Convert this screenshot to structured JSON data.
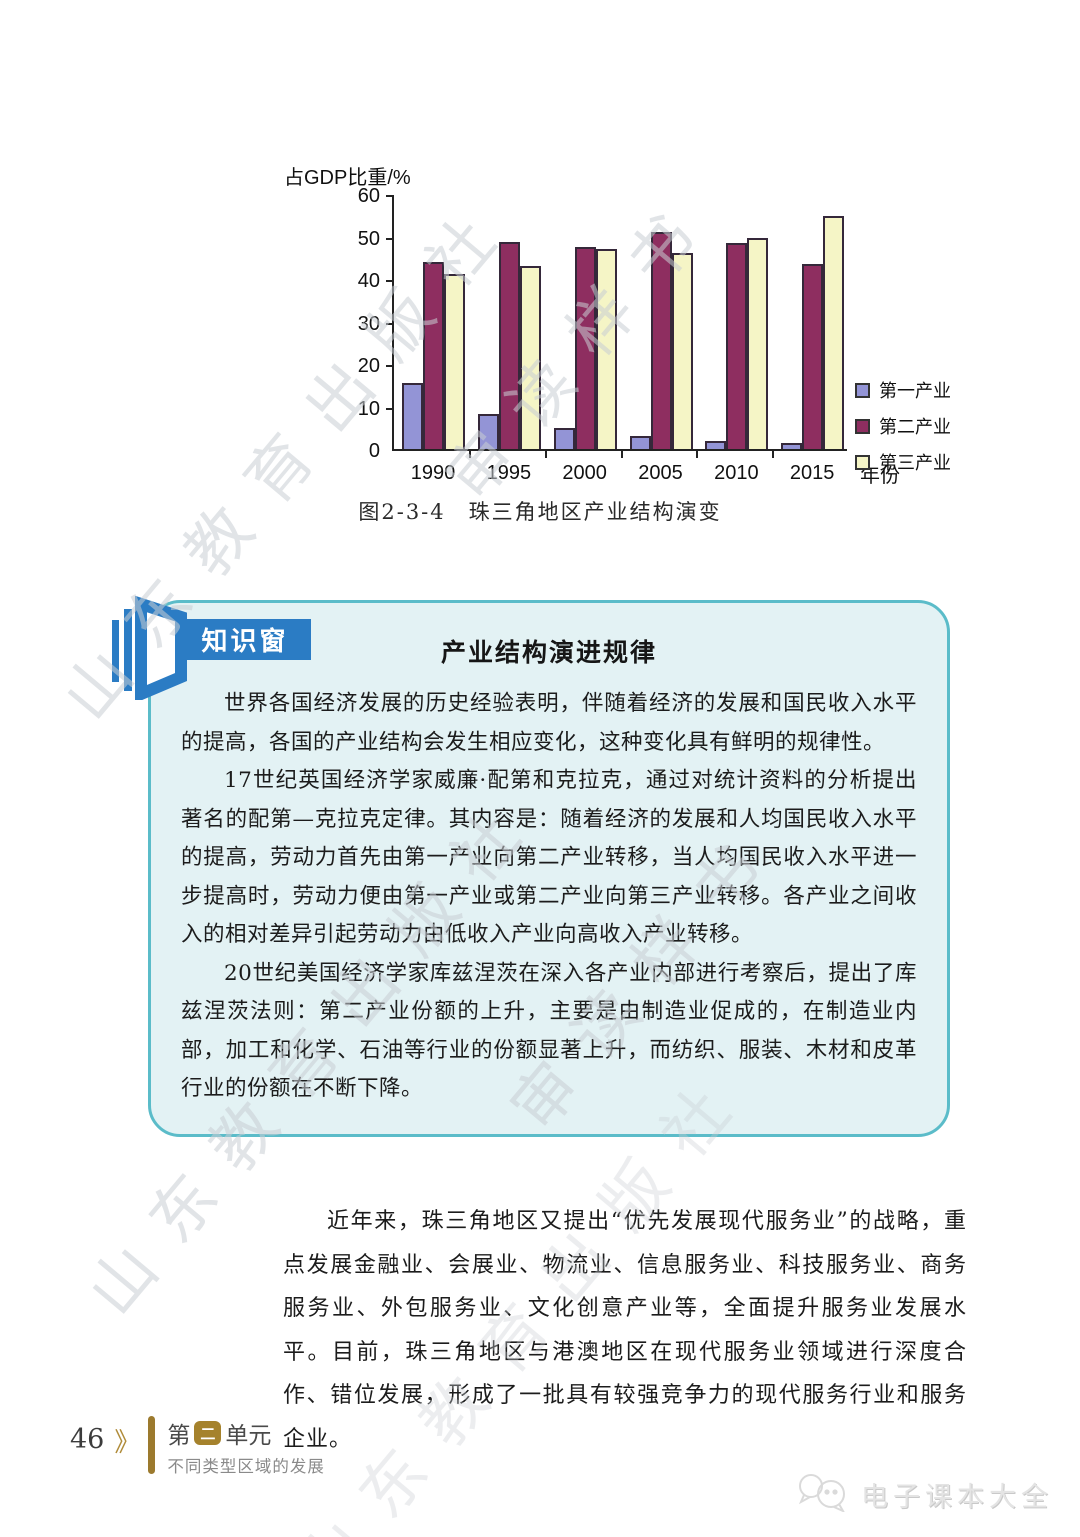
{
  "chart_data": {
    "type": "bar",
    "title": "图2-3-4　珠三角地区产业结构演变",
    "ylabel": "占GDP比重/%",
    "xlabel": "年份",
    "categories": [
      "1990",
      "1995",
      "2000",
      "2005",
      "2010",
      "2015"
    ],
    "series": [
      {
        "name": "第一产业",
        "color": "#9394d6",
        "values": [
          15.5,
          8.2,
          5.0,
          3.0,
          2.0,
          1.5
        ]
      },
      {
        "name": "第二产业",
        "color": "#8e2e60",
        "values": [
          44.0,
          48.8,
          47.6,
          51.0,
          48.5,
          43.6
        ]
      },
      {
        "name": "第三产业",
        "color": "#f5f5c6",
        "values": [
          41.2,
          43.0,
          47.0,
          46.2,
          49.6,
          54.9
        ]
      }
    ],
    "ylim": [
      0,
      60
    ],
    "ytick_step": 10,
    "legend_position": "right",
    "grid": false
  },
  "knowledge_box": {
    "badge": "知识窗",
    "title": "产业结构演进规律",
    "paragraphs": [
      "世界各国经济发展的历史经验表明，伴随着经济的发展和国民收入水平的提高，各国的产业结构会发生相应变化，这种变化具有鲜明的规律性。",
      "17世纪英国经济学家威廉·配第和克拉克，通过对统计资料的分析提出著名的配第—克拉克定律。其内容是：随着经济的发展和人均国民收入水平的提高，劳动力首先由第一产业向第二产业转移，当人均国民收入水平进一步提高时，劳动力便由第一产业或第二产业向第三产业转移。各产业之间收入的相对差异引起劳动力由低收入产业向高收入产业转移。",
      "20世纪美国经济学家库兹涅茨在深入各产业内部进行考察后，提出了库兹涅茨法则：第二产业份额的上升，主要是由制造业促成的，在制造业内部，加工和化学、石油等行业的份额显著上升，而纺织、服装、木材和皮革行业的份额在不断下降。"
    ]
  },
  "body_paragraph": "近年来，珠三角地区又提出“优先发展现代服务业”的战略，重点发展金融业、会展业、物流业、信息服务业、科技服务业、商务服务业、外包服务业、文化创意产业等，全面提升服务业发展水平。目前，珠三角地区与港澳地区在现代服务业领域进行深度合作、错位发展，形成了一批具有较强竞争力的现代服务行业和服务企业。",
  "footer": {
    "page_number": "46",
    "chevron": "》",
    "unit_prefix": "第",
    "unit_boxed": "二",
    "unit_suffix": "单元",
    "unit_subtitle": "不同类型区域的发展"
  },
  "watermarks": {
    "press": "山东教育出版社",
    "sample": "审读样书",
    "brand": "电子课本大全"
  }
}
